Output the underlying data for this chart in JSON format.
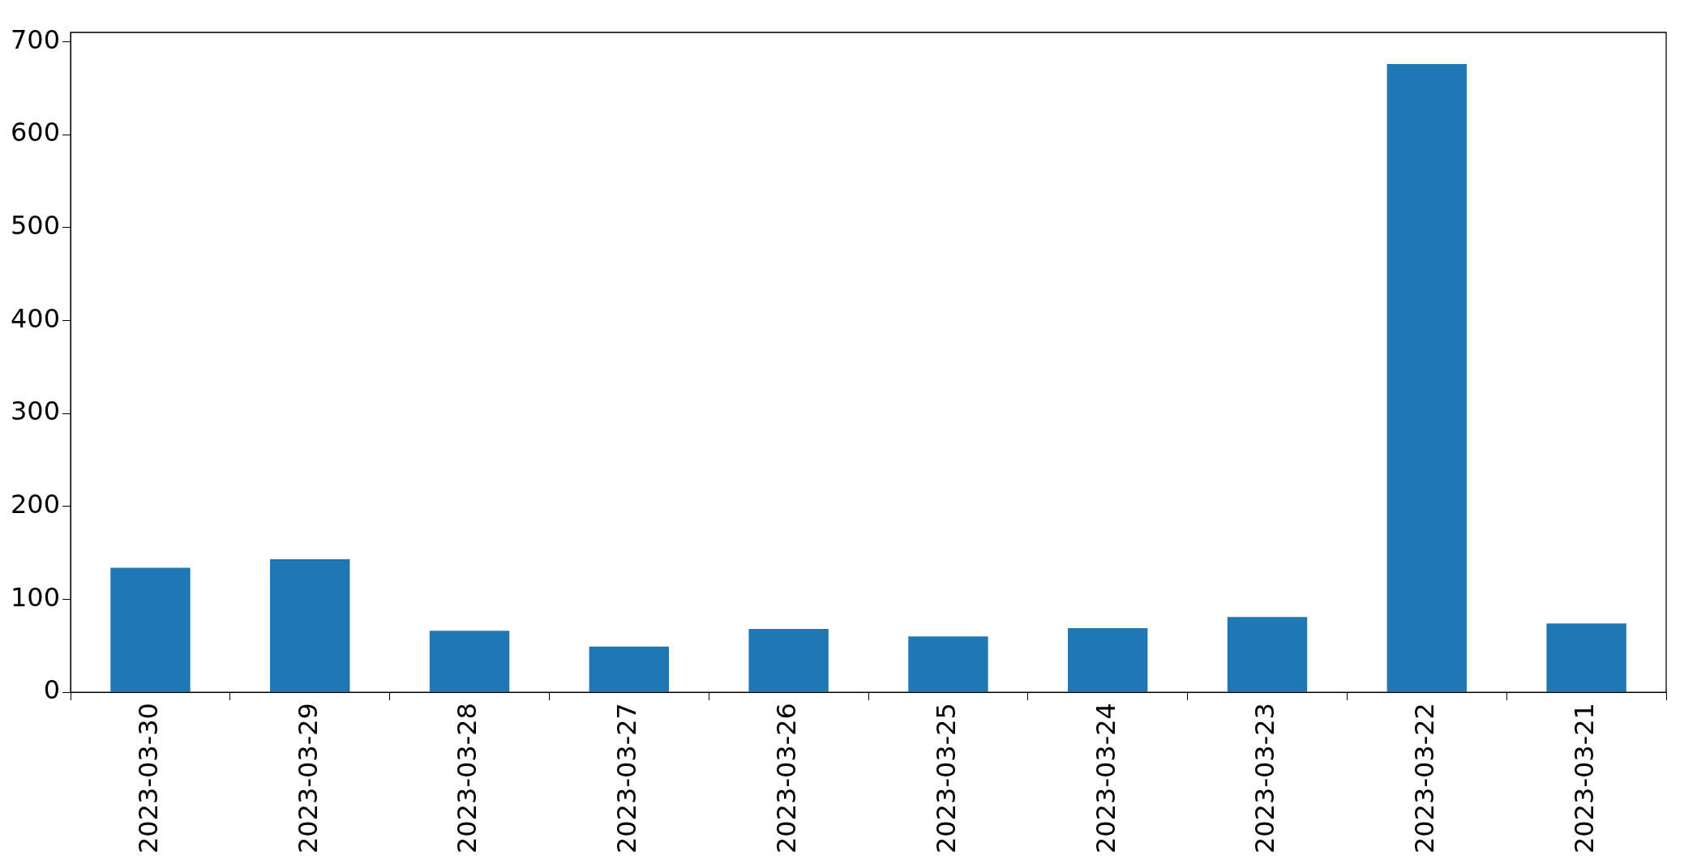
{
  "chart_data": {
    "type": "bar",
    "categories": [
      "2023-03-30",
      "2023-03-29",
      "2023-03-28",
      "2023-03-27",
      "2023-03-26",
      "2023-03-25",
      "2023-03-24",
      "2023-03-23",
      "2023-03-22",
      "2023-03-21"
    ],
    "values": [
      134,
      143,
      66,
      49,
      68,
      60,
      69,
      81,
      676,
      74
    ],
    "color": "#1f77b4",
    "ylim": [
      0,
      710
    ],
    "yticks": [
      0,
      100,
      200,
      300,
      400,
      500,
      600,
      700
    ],
    "grid": false,
    "legend": false
  }
}
